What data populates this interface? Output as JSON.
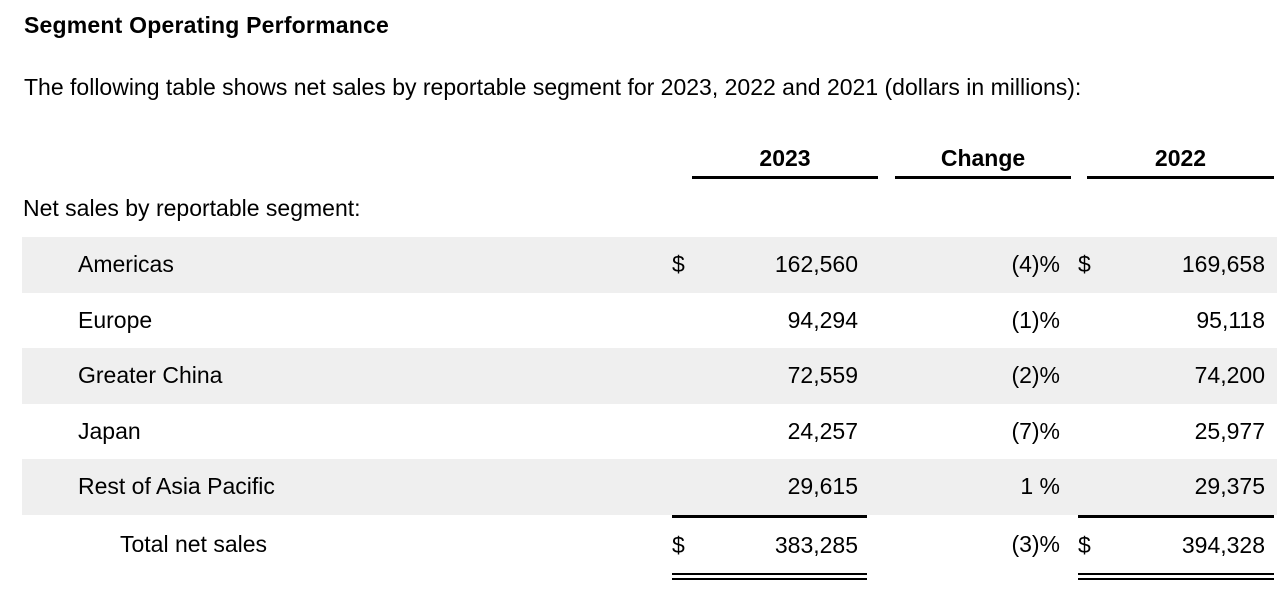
{
  "page": {
    "title": "Segment Operating Performance",
    "intro": "The following table shows net sales by reportable segment for 2023, 2022 and 2021 (dollars in millions):"
  },
  "table": {
    "columns": {
      "c2023": "2023",
      "change": "Change",
      "c2022": "2022"
    },
    "section_label": "Net sales by reportable segment:",
    "rows": [
      {
        "label": "Americas",
        "cur2023": "$",
        "v2023": "162,560",
        "change": "(4)%",
        "cur2022": "$",
        "v2022": "169,658"
      },
      {
        "label": "Europe",
        "v2023": "94,294",
        "change": "(1)%",
        "v2022": "95,118"
      },
      {
        "label": "Greater China",
        "v2023": "72,559",
        "change": "(2)%",
        "v2022": "74,200"
      },
      {
        "label": "Japan",
        "v2023": "24,257",
        "change": "(7)%",
        "v2022": "25,977"
      },
      {
        "label": "Rest of Asia Pacific",
        "v2023": "29,615",
        "change": "1 %",
        "v2022": "29,375"
      }
    ],
    "total": {
      "label": "Total net sales",
      "cur2023": "$",
      "v2023": "383,285",
      "change": "(3)%",
      "cur2022": "$",
      "v2022": "394,328"
    }
  },
  "colors": {
    "row_shade": "#efefef",
    "text": "#000000",
    "rule": "#000000"
  }
}
